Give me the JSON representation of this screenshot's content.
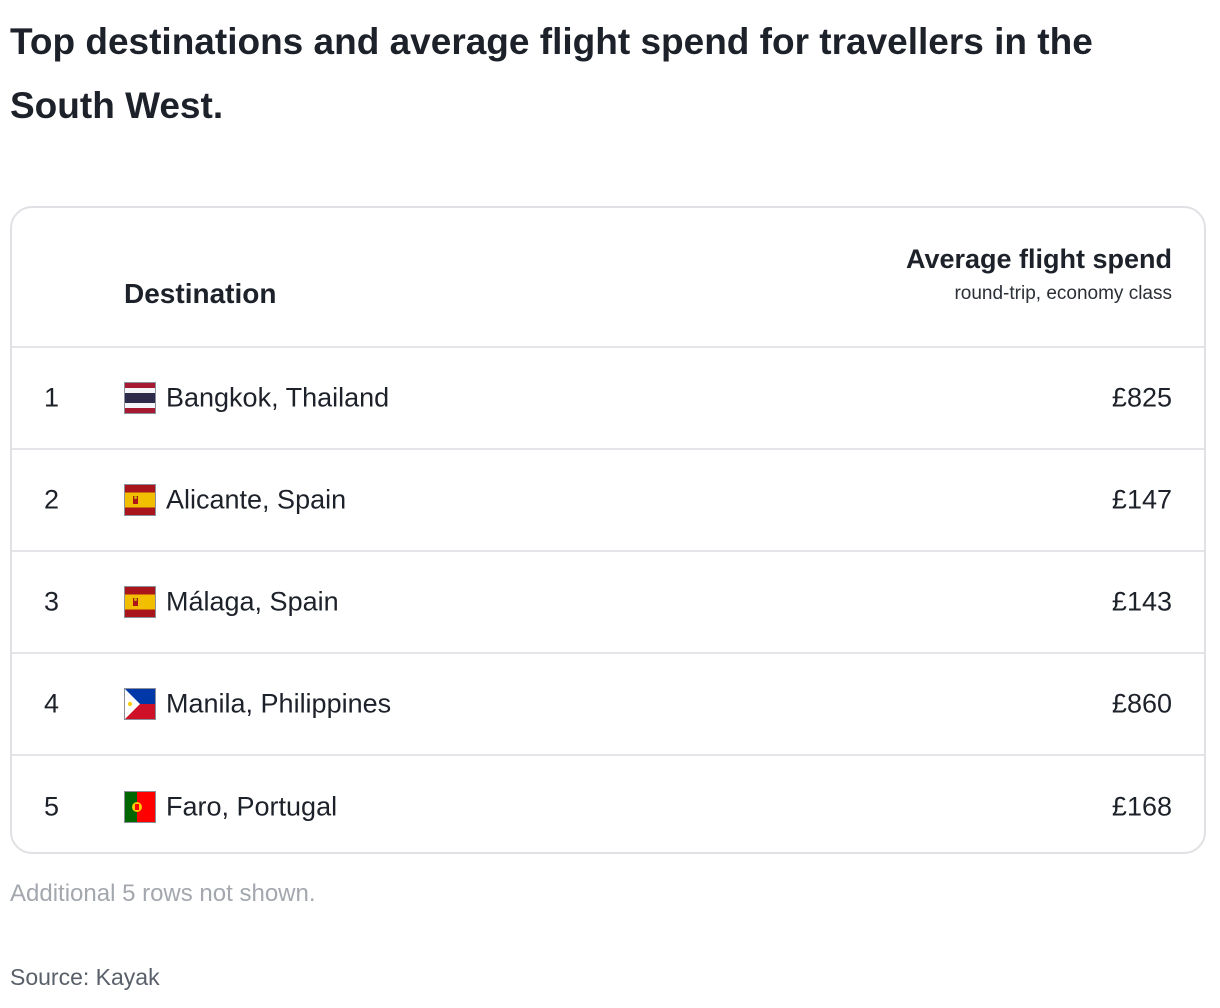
{
  "title": "Top destinations and average flight spend for travellers in the South West.",
  "table": {
    "header_destination": "Destination",
    "header_spend": "Average flight spend",
    "header_spend_sub": "round-trip, economy class"
  },
  "footer": {
    "note": "Additional 5 rows not shown.",
    "source": "Source: Kayak"
  },
  "chart_data": {
    "type": "table",
    "title": "Top destinations and average flight spend for travellers in the South West.",
    "columns": [
      "",
      "Destination",
      "Average flight spend"
    ],
    "rows": [
      {
        "rank": "1",
        "flag": "thailand-flag-icon",
        "destination": "Bangkok, Thailand",
        "spend": "£825",
        "spend_value": 825
      },
      {
        "rank": "2",
        "flag": "spain-flag-icon",
        "destination": "Alicante, Spain",
        "spend": "£147",
        "spend_value": 147
      },
      {
        "rank": "3",
        "flag": "spain-flag-icon",
        "destination": "Málaga, Spain",
        "spend": "£143",
        "spend_value": 143
      },
      {
        "rank": "4",
        "flag": "philippines-flag-icon",
        "destination": "Manila, Philippines",
        "spend": "£860",
        "spend_value": 860
      },
      {
        "rank": "5",
        "flag": "portugal-flag-icon",
        "destination": "Faro, Portugal",
        "spend": "£168",
        "spend_value": 168
      }
    ]
  }
}
